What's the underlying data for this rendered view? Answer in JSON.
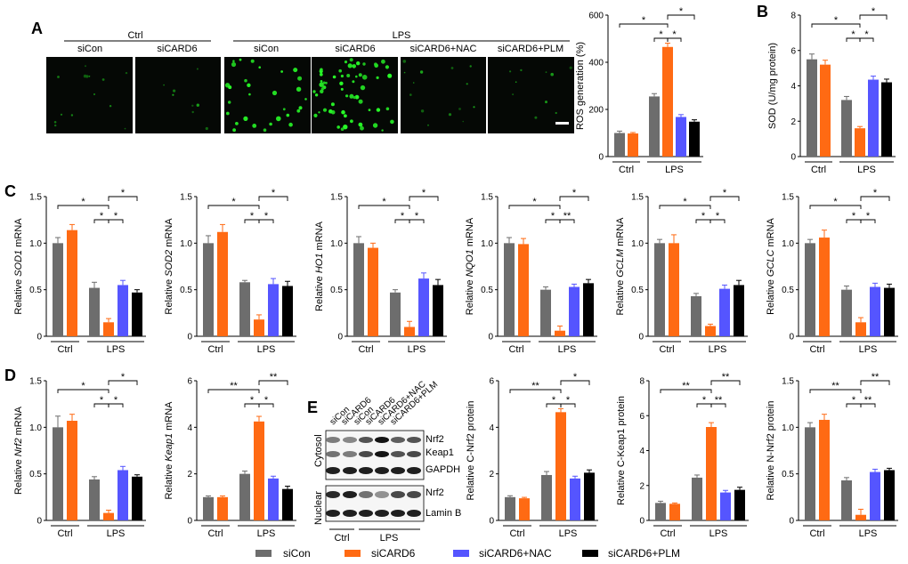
{
  "colors": {
    "siCon": "#6d6d6d",
    "siCARD6": "#ff6a13",
    "siCARD6+NAC": "#5555ff",
    "siCARD6+PLM": "#000000"
  },
  "panel_letters": [
    "A",
    "B",
    "C",
    "D",
    "E"
  ],
  "panel_A": {
    "ctrl_label": "Ctrl",
    "lps_label": "LPS",
    "image_labels": [
      "siCon",
      "siCARD6",
      "siCon",
      "siCARD6",
      "siCARD6+NAC",
      "siCARD6+PLM"
    ]
  },
  "panel_E": {
    "lane_labels": [
      "siCon",
      "siCARD6",
      "siCon",
      "siCARD6",
      "siCARD6+NAC",
      "siCARD6+PLM"
    ],
    "section_labels": [
      "Cytosol",
      "Nuclear"
    ],
    "bands": [
      "Nrf2",
      "Keap1",
      "GAPDH",
      "Nrf2",
      "Lamin B"
    ],
    "group_labels": [
      "Ctrl",
      "LPS"
    ]
  },
  "legend": [
    {
      "label": "siCon",
      "color": "#6d6d6d"
    },
    {
      "label": "siCARD6",
      "color": "#ff6a13"
    },
    {
      "label": "siCARD6+NAC",
      "color": "#5555ff"
    },
    {
      "label": "siCARD6+PLM",
      "color": "#000000"
    }
  ],
  "chart_data": [
    {
      "id": "ros",
      "type": "bar",
      "ylabel": "ROS generation (%)",
      "ylim": [
        0,
        600
      ],
      "ticks": [
        0,
        200,
        400,
        600
      ],
      "groups": [
        "Ctrl",
        "LPS"
      ],
      "values": [
        100,
        98,
        255,
        465,
        168,
        148
      ],
      "errors": [
        8,
        4,
        12,
        16,
        10,
        8
      ],
      "sig": [
        "*",
        "*",
        "*",
        "*"
      ]
    },
    {
      "id": "sod",
      "type": "bar",
      "ylabel": "SOD (U/mg protein)",
      "ylim": [
        0,
        8
      ],
      "ticks": [
        0,
        2,
        4,
        6,
        8
      ],
      "groups": [
        "Ctrl",
        "LPS"
      ],
      "values": [
        5.5,
        5.2,
        3.2,
        1.6,
        4.35,
        4.2
      ],
      "errors": [
        0.3,
        0.25,
        0.2,
        0.1,
        0.2,
        0.18
      ],
      "sig": [
        "*",
        "*",
        "*",
        "*"
      ]
    },
    {
      "id": "sod1",
      "type": "bar",
      "ylabel_prefix": "Relative ",
      "gene": "SOD1",
      "ylabel_suffix": " mRNA",
      "ylim": [
        0,
        1.5
      ],
      "ticks": [
        "0",
        "0.5",
        "1.0",
        "1.5"
      ],
      "groups": [
        "Ctrl",
        "LPS"
      ],
      "values": [
        1.0,
        1.14,
        0.52,
        0.15,
        0.55,
        0.47
      ],
      "errors": [
        0.06,
        0.06,
        0.06,
        0.04,
        0.05,
        0.03
      ],
      "sig": [
        "*",
        "*",
        "*",
        "*"
      ]
    },
    {
      "id": "sod2",
      "type": "bar",
      "ylabel_prefix": "Relative ",
      "gene": "SOD2",
      "ylabel_suffix": " mRNA",
      "ylim": [
        0,
        1.5
      ],
      "ticks": [
        "0",
        "0.5",
        "1.0",
        "1.5"
      ],
      "groups": [
        "Ctrl",
        "LPS"
      ],
      "values": [
        1.0,
        1.12,
        0.58,
        0.18,
        0.56,
        0.54
      ],
      "errors": [
        0.08,
        0.08,
        0.02,
        0.05,
        0.06,
        0.05
      ],
      "sig": [
        "*",
        "*",
        "*",
        "*"
      ]
    },
    {
      "id": "ho1",
      "type": "bar",
      "ylabel_prefix": "Relative ",
      "gene": "HO1",
      "ylabel_suffix": " mRNA",
      "ylim": [
        0,
        1.5
      ],
      "ticks": [
        "0",
        "0.5",
        "1.0",
        "1.5"
      ],
      "groups": [
        "Ctrl",
        "LPS"
      ],
      "values": [
        1.0,
        0.95,
        0.47,
        0.1,
        0.62,
        0.55
      ],
      "errors": [
        0.07,
        0.05,
        0.03,
        0.06,
        0.06,
        0.06
      ],
      "sig": [
        "*",
        "*",
        "*",
        "*"
      ]
    },
    {
      "id": "nqo1",
      "type": "bar",
      "ylabel_prefix": "Relative ",
      "gene": "NQO1",
      "ylabel_suffix": " mRNA",
      "ylim": [
        0,
        1.5
      ],
      "ticks": [
        "0",
        "0.5",
        "1.0",
        "1.5"
      ],
      "groups": [
        "Ctrl",
        "LPS"
      ],
      "values": [
        1.0,
        0.99,
        0.5,
        0.06,
        0.53,
        0.57
      ],
      "errors": [
        0.06,
        0.06,
        0.03,
        0.05,
        0.03,
        0.04
      ],
      "sig": [
        "*",
        "*",
        "**",
        "*"
      ]
    },
    {
      "id": "gclm",
      "type": "bar",
      "ylabel_prefix": "Relative ",
      "gene": "GCLM",
      "ylabel_suffix": " mRNA",
      "ylim": [
        0,
        1.5
      ],
      "ticks": [
        "0",
        "0.5",
        "1.0",
        "1.5"
      ],
      "groups": [
        "Ctrl",
        "LPS"
      ],
      "values": [
        1.0,
        1.0,
        0.43,
        0.11,
        0.51,
        0.55
      ],
      "errors": [
        0.04,
        0.09,
        0.03,
        0.02,
        0.04,
        0.05
      ],
      "sig": [
        "*",
        "*",
        "*",
        "*"
      ]
    },
    {
      "id": "gclc",
      "type": "bar",
      "ylabel_prefix": "Relative ",
      "gene": "GCLC",
      "ylabel_suffix": " mRNA",
      "ylim": [
        0,
        1.5
      ],
      "ticks": [
        "0",
        "0.5",
        "1.0",
        "1.5"
      ],
      "groups": [
        "Ctrl",
        "LPS"
      ],
      "values": [
        1.0,
        1.06,
        0.5,
        0.15,
        0.53,
        0.52
      ],
      "errors": [
        0.04,
        0.08,
        0.04,
        0.05,
        0.04,
        0.04
      ],
      "sig": [
        "*",
        "*",
        "*",
        "*"
      ]
    },
    {
      "id": "nrf2",
      "type": "bar",
      "ylabel_prefix": "Relative ",
      "gene": "Nrf2",
      "ylabel_suffix": " mRNA",
      "ylim": [
        0,
        1.5
      ],
      "ticks": [
        "0",
        "0.5",
        "1.0",
        "1.5"
      ],
      "groups": [
        "Ctrl",
        "LPS"
      ],
      "values": [
        1.0,
        1.07,
        0.44,
        0.08,
        0.54,
        0.47
      ],
      "errors": [
        0.12,
        0.07,
        0.03,
        0.03,
        0.04,
        0.02
      ],
      "sig": [
        "*",
        "*",
        "*",
        "*"
      ]
    },
    {
      "id": "keap1",
      "type": "bar",
      "ylabel_prefix": "Relative ",
      "gene": "Keap1",
      "ylabel_suffix": " mRNA",
      "ylim": [
        0,
        6
      ],
      "ticks": [
        "0",
        "2",
        "4",
        "6"
      ],
      "groups": [
        "Ctrl",
        "LPS"
      ],
      "values": [
        1.0,
        1.0,
        2.0,
        4.25,
        1.8,
        1.35
      ],
      "errors": [
        0.05,
        0.05,
        0.12,
        0.22,
        0.1,
        0.12
      ],
      "sig": [
        "**",
        "*",
        "*",
        "**"
      ]
    },
    {
      "id": "cnrf2",
      "type": "bar",
      "ylabel": "Relative C-Nrf2 protein",
      "ylim": [
        0,
        6
      ],
      "ticks": [
        "0",
        "2",
        "4",
        "6"
      ],
      "groups": [
        "Ctrl",
        "LPS"
      ],
      "values": [
        1.0,
        0.95,
        1.95,
        4.65,
        1.8,
        2.05
      ],
      "errors": [
        0.06,
        0.04,
        0.15,
        0.15,
        0.1,
        0.12
      ],
      "sig": [
        "**",
        "*",
        "*",
        "*"
      ]
    },
    {
      "id": "ckeap1",
      "type": "bar",
      "ylabel": "Relative C-Keap1 protein",
      "ylim": [
        0,
        8
      ],
      "ticks": [
        "0",
        "2",
        "4",
        "6",
        "8"
      ],
      "groups": [
        "Ctrl",
        "LPS"
      ],
      "values": [
        1.0,
        0.95,
        2.45,
        5.35,
        1.6,
        1.75
      ],
      "errors": [
        0.1,
        0.05,
        0.15,
        0.25,
        0.12,
        0.15
      ],
      "sig": [
        "**",
        "*",
        "**",
        "**"
      ]
    },
    {
      "id": "nnrf2",
      "type": "bar",
      "ylabel": "Relative N-Nrf2 protein",
      "ylim": [
        0,
        1.5
      ],
      "ticks": [
        "0",
        "0.5",
        "1.0",
        "1.5"
      ],
      "groups": [
        "Ctrl",
        "LPS"
      ],
      "values": [
        1.0,
        1.08,
        0.43,
        0.06,
        0.52,
        0.54
      ],
      "errors": [
        0.05,
        0.06,
        0.03,
        0.06,
        0.03,
        0.02
      ],
      "sig": [
        "**",
        "*",
        "**",
        "**"
      ]
    }
  ]
}
